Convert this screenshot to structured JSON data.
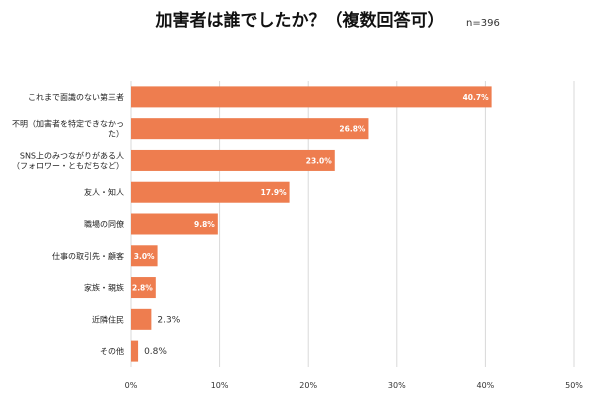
{
  "chart_data": {
    "type": "bar",
    "orientation": "horizontal",
    "title": "加害者は誰でしたか？（複数回答可）",
    "subtitle": "n=396",
    "categories": [
      [
        "これまで面識のない第三者"
      ],
      [
        "不明（加害者を特定できなかっ",
        "た）"
      ],
      [
        "SNS上のみつながりがある人",
        "（フォロワー・ともだちなど）"
      ],
      [
        "友人・知人"
      ],
      [
        "職場の同僚"
      ],
      [
        "仕事の取引先・顧客"
      ],
      [
        "家族・親族"
      ],
      [
        "近隣住民"
      ],
      [
        "その他"
      ]
    ],
    "values": [
      40.7,
      26.8,
      23.0,
      17.9,
      9.8,
      3.0,
      2.8,
      2.3,
      0.8
    ],
    "value_labels": [
      "40.7%",
      "26.8%",
      "23.0%",
      "17.9%",
      "9.8%",
      "3.0%",
      "2.8%",
      "2.3%",
      "0.8%"
    ],
    "xlim": [
      0,
      50
    ],
    "xticks": [
      0,
      10,
      20,
      30,
      40,
      50
    ],
    "xtick_labels": [
      "0%",
      "10%",
      "20%",
      "30%",
      "40%",
      "50%"
    ],
    "grid": true,
    "bar_color": "#ee7d4f",
    "xlabel": "",
    "ylabel": ""
  }
}
